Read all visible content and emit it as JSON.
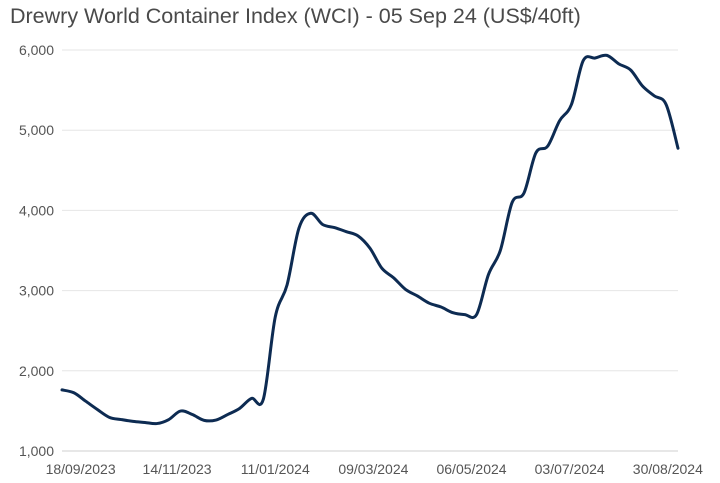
{
  "chart_data": {
    "type": "line",
    "title": "Drewry World Container Index (WCI) - 05 Sep 24 (US$/40ft)",
    "xlabel": "",
    "ylabel": "",
    "ylim": [
      1000,
      6000
    ],
    "yticks": [
      1000,
      2000,
      3000,
      4000,
      5000,
      6000
    ],
    "ytick_labels": [
      "1,000",
      "2,000",
      "3,000",
      "4,000",
      "5,000",
      "6,000"
    ],
    "xticks": [
      "2023-09-18",
      "2023-11-14",
      "2024-01-11",
      "2024-03-09",
      "2024-05-06",
      "2024-07-03",
      "2024-08-30"
    ],
    "xtick_labels": [
      "18/09/2023",
      "14/11/2023",
      "11/01/2024",
      "09/03/2024",
      "06/05/2024",
      "03/07/2024",
      "30/08/2024"
    ],
    "grid": true,
    "colors": {
      "line": "#0d2b52",
      "grid": "#e6e6e6"
    },
    "series": [
      {
        "x": [
          "2023-09-07",
          "2023-09-14",
          "2023-09-21",
          "2023-09-28",
          "2023-10-05",
          "2023-10-12",
          "2023-10-19",
          "2023-10-26",
          "2023-11-02",
          "2023-11-09",
          "2023-11-16",
          "2023-11-23",
          "2023-11-30",
          "2023-12-07",
          "2023-12-14",
          "2023-12-21",
          "2023-12-28",
          "2024-01-04",
          "2024-01-11",
          "2024-01-18",
          "2024-01-25",
          "2024-02-01",
          "2024-02-08",
          "2024-02-15",
          "2024-02-22",
          "2024-02-29",
          "2024-03-07",
          "2024-03-14",
          "2024-03-21",
          "2024-03-28",
          "2024-04-04",
          "2024-04-11",
          "2024-04-18",
          "2024-04-25",
          "2024-05-02",
          "2024-05-09",
          "2024-05-16",
          "2024-05-23",
          "2024-05-30",
          "2024-06-06",
          "2024-06-13",
          "2024-06-20",
          "2024-06-27",
          "2024-07-04",
          "2024-07-11",
          "2024-07-18",
          "2024-07-25",
          "2024-08-01",
          "2024-08-08",
          "2024-08-15",
          "2024-08-22",
          "2024-08-29",
          "2024-09-05"
        ],
        "values": [
          1762,
          1726,
          1621,
          1516,
          1420,
          1392,
          1369,
          1356,
          1342,
          1391,
          1498,
          1455,
          1382,
          1386,
          1456,
          1532,
          1656,
          1648,
          2670,
          3072,
          3777,
          3964,
          3824,
          3786,
          3735,
          3681,
          3528,
          3279,
          3159,
          3015,
          2933,
          2843,
          2795,
          2724,
          2700,
          2702,
          3200,
          3500,
          4100,
          4217,
          4716,
          4801,
          5117,
          5319,
          5868,
          5900,
          5933,
          5827,
          5751,
          5551,
          5428,
          5319,
          4775
        ]
      }
    ]
  }
}
